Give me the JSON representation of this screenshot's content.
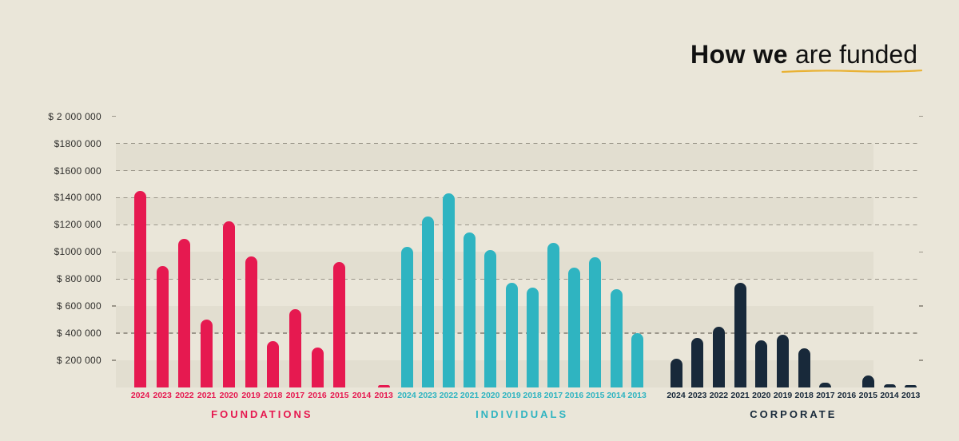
{
  "title": {
    "bold": "How we",
    "regular": " are funded"
  },
  "colors": {
    "background": "#eae6d9",
    "band": "#e2ded0",
    "grid": "#9b968a",
    "axis_text": "#2e2d2b",
    "title_text": "#111111",
    "underline": "#e9b235",
    "foundations": "#e61950",
    "individuals": "#2fb4c1",
    "corporate": "#18293a"
  },
  "chart_data": {
    "type": "bar",
    "title": "How we are funded",
    "ylabel": "",
    "xlabel": "",
    "ylim": [
      0,
      2000000
    ],
    "grid": "horizontal dashed (partial)",
    "legend_position": "none (group labels below axis)",
    "y_axis_labels": [
      {
        "value": 2000000,
        "label": "$ 2 000 000"
      },
      {
        "value": 1800000,
        "label": "$1800 000"
      },
      {
        "value": 1600000,
        "label": "$1600 000"
      },
      {
        "value": 1400000,
        "label": "$1400 000"
      },
      {
        "value": 1200000,
        "label": "$1200 000"
      },
      {
        "value": 1000000,
        "label": "$1000 000"
      },
      {
        "value": 800000,
        "label": "$ 800 000"
      },
      {
        "value": 600000,
        "label": "$ 600 000"
      },
      {
        "value": 400000,
        "label": "$ 400 000"
      },
      {
        "value": 200000,
        "label": "$ 200 000"
      }
    ],
    "gridlines_dashed": [
      1800000,
      1600000,
      1400000,
      1200000,
      800000,
      400000
    ],
    "gridlines_tick_only": [
      2000000,
      1000000,
      600000,
      200000
    ],
    "shaded_bands": [
      [
        1600000,
        1800000
      ],
      [
        1200000,
        1400000
      ],
      [
        800000,
        1000000
      ],
      [
        400000,
        600000
      ],
      [
        0,
        200000
      ]
    ],
    "categories": [
      "2024",
      "2023",
      "2022",
      "2021",
      "2020",
      "2019",
      "2018",
      "2017",
      "2016",
      "2015",
      "2014",
      "2013"
    ],
    "series": [
      {
        "name": "FOUNDATIONS",
        "color_key": "foundations",
        "values": [
          1450000,
          895000,
          1095000,
          500000,
          1225000,
          965000,
          340000,
          580000,
          295000,
          925000,
          0,
          15000
        ]
      },
      {
        "name": "INDIVIDUALS",
        "color_key": "individuals",
        "values": [
          1040000,
          1260000,
          1435000,
          1145000,
          1015000,
          770000,
          735000,
          1065000,
          885000,
          960000,
          725000,
          400000
        ]
      },
      {
        "name": "CORPORATE",
        "color_key": "corporate",
        "values": [
          215000,
          365000,
          450000,
          775000,
          345000,
          390000,
          290000,
          35000,
          0,
          90000,
          25000,
          15000
        ]
      }
    ]
  }
}
